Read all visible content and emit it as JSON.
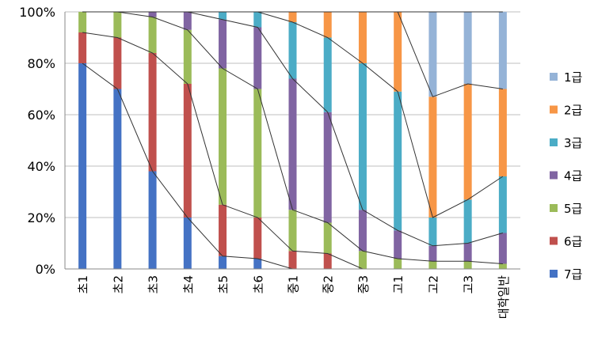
{
  "chart_data": {
    "type": "bar",
    "stacked": "percent",
    "title": "",
    "xlabel": "",
    "ylabel": "",
    "ylim": [
      0,
      100
    ],
    "yticks": [
      "0%",
      "20%",
      "40%",
      "60%",
      "80%",
      "100%"
    ],
    "grid": true,
    "connector_lines": true,
    "legend_position": "right",
    "categories": [
      "초1",
      "초2",
      "초3",
      "초4",
      "초5",
      "초6",
      "중1",
      "중2",
      "중3",
      "고1",
      "고2",
      "고3",
      "대학일반"
    ],
    "series": [
      {
        "name": "7급",
        "color": "#4472C4",
        "values": [
          80,
          70,
          38,
          20,
          5,
          4,
          0,
          0,
          0,
          0,
          0,
          0,
          0
        ]
      },
      {
        "name": "6급",
        "color": "#C0504D",
        "values": [
          12,
          20,
          46,
          52,
          20,
          16,
          7,
          6,
          0,
          0,
          0,
          0,
          0
        ]
      },
      {
        "name": "5급",
        "color": "#9BBB59",
        "values": [
          8,
          10,
          14,
          21,
          53,
          50,
          16,
          12,
          7,
          4,
          3,
          3,
          2
        ]
      },
      {
        "name": "4급",
        "color": "#8064A2",
        "values": [
          0,
          0,
          2,
          7,
          19,
          24,
          51,
          43,
          16,
          11,
          6,
          7,
          12
        ]
      },
      {
        "name": "3급",
        "color": "#4BACC6",
        "values": [
          0,
          0,
          0,
          0,
          3,
          6,
          22,
          29,
          57,
          54,
          11,
          17,
          22
        ]
      },
      {
        "name": "2급",
        "color": "#F79646",
        "values": [
          0,
          0,
          0,
          0,
          0,
          0,
          4,
          10,
          20,
          31,
          47,
          45,
          34
        ]
      },
      {
        "name": "1급",
        "color": "#95B3D7",
        "values": [
          0,
          0,
          0,
          0,
          0,
          0,
          0,
          0,
          0,
          0,
          33,
          28,
          30
        ]
      }
    ]
  }
}
